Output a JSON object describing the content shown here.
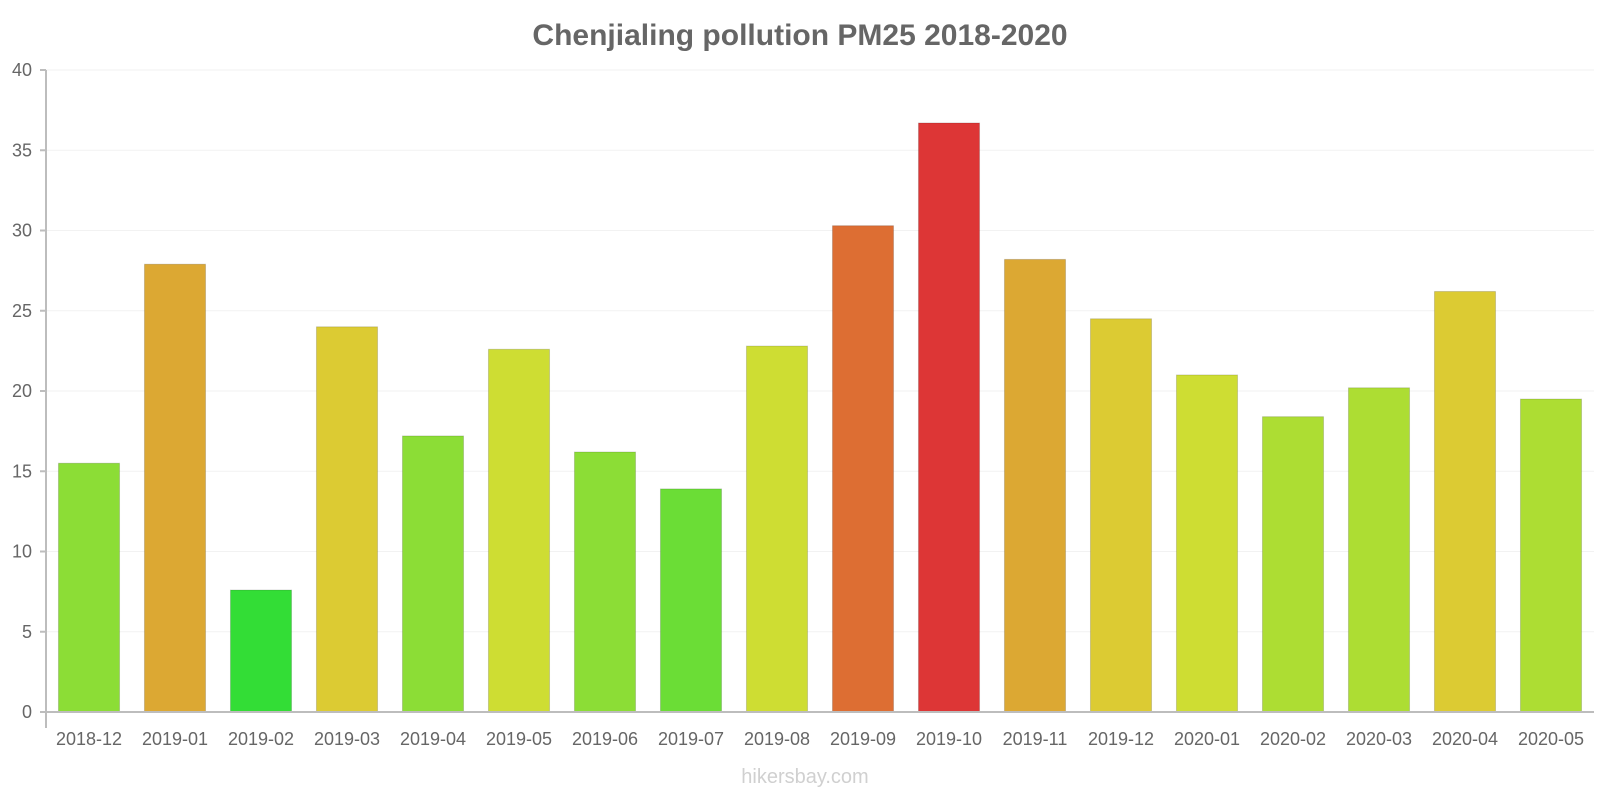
{
  "chart_data": {
    "type": "bar",
    "title": "Chenjialing pollution PM25 2018-2020",
    "xlabel": "",
    "ylabel": "",
    "ylim": [
      0,
      40
    ],
    "yticks": [
      0,
      5,
      10,
      15,
      20,
      25,
      30,
      35,
      40
    ],
    "grid": true,
    "categories": [
      "2018-12",
      "2019-01",
      "2019-02",
      "2019-03",
      "2019-04",
      "2019-05",
      "2019-06",
      "2019-07",
      "2019-08",
      "2019-09",
      "2019-10",
      "2019-11",
      "2019-12",
      "2020-01",
      "2020-02",
      "2020-03",
      "2020-04",
      "2020-05"
    ],
    "values": [
      15.5,
      27.9,
      7.6,
      24.0,
      17.2,
      22.6,
      16.2,
      13.9,
      22.8,
      30.3,
      36.7,
      28.2,
      24.5,
      21.0,
      18.4,
      20.2,
      26.2,
      19.5
    ],
    "colors": [
      "#8cdd36",
      "#dca833",
      "#33dd36",
      "#dccb33",
      "#8cdd36",
      "#cedd33",
      "#8cdd36",
      "#6bdd36",
      "#cedd33",
      "#dd6e33",
      "#dd3636",
      "#dca833",
      "#dccb33",
      "#cedd33",
      "#addd33",
      "#addd33",
      "#dccb33",
      "#addd33"
    ],
    "watermark": "hikersbay.com"
  }
}
